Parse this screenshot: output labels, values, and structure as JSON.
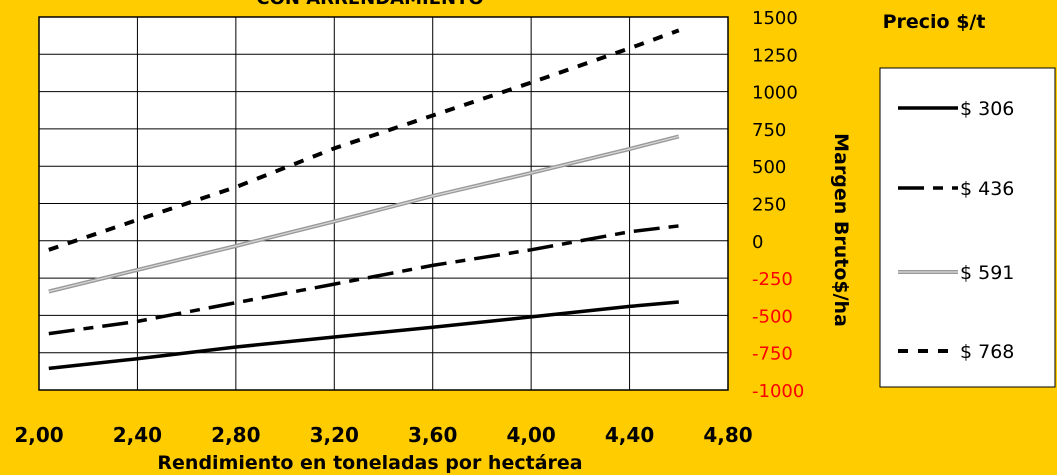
{
  "chart_data": {
    "type": "line",
    "title": "CON ARRENDAMIENTO",
    "xlabel": "Rendimiento en toneladas por hectárea",
    "ylabel": "Margen Bruto$/ha",
    "legend_title": "Precio $/t",
    "xlim": [
      2.0,
      4.8
    ],
    "ylim": [
      -1000,
      1500
    ],
    "x_ticks": [
      "2,00",
      "2,40",
      "2,80",
      "3,20",
      "3,60",
      "4,00",
      "4,40",
      "4,80"
    ],
    "y_ticks": [
      "1500",
      "1250",
      "1000",
      "750",
      "500",
      "250",
      "0",
      "-250",
      "-500",
      "-750",
      "-1000"
    ],
    "grid": true,
    "legend_position": "right",
    "series": [
      {
        "name": "$ 306",
        "style": "solid",
        "color": "#000000",
        "x": [
          2.04,
          2.4,
          2.8,
          3.2,
          3.6,
          4.0,
          4.4,
          4.6
        ],
        "y": [
          -855,
          -790,
          -712,
          -645,
          -580,
          -510,
          -440,
          -410
        ]
      },
      {
        "name": "$ 436",
        "style": "dashed",
        "color": "#000000",
        "x": [
          2.04,
          2.4,
          2.8,
          3.2,
          3.6,
          4.0,
          4.4,
          4.6
        ],
        "y": [
          -622,
          -540,
          -415,
          -290,
          -165,
          -60,
          60,
          100
        ]
      },
      {
        "name": "$ 591",
        "style": "gray",
        "color": "#9a9a9a",
        "x": [
          2.04,
          2.4,
          2.8,
          3.2,
          3.6,
          4.0,
          4.4,
          4.6
        ],
        "y": [
          -340,
          -195,
          -35,
          130,
          300,
          455,
          615,
          700
        ]
      },
      {
        "name": "$ 768",
        "style": "dotted",
        "color": "#000000",
        "x": [
          2.04,
          2.4,
          2.8,
          3.2,
          3.6,
          4.0,
          4.4,
          4.6
        ],
        "y": [
          -60,
          140,
          360,
          620,
          840,
          1060,
          1290,
          1410
        ]
      }
    ]
  }
}
